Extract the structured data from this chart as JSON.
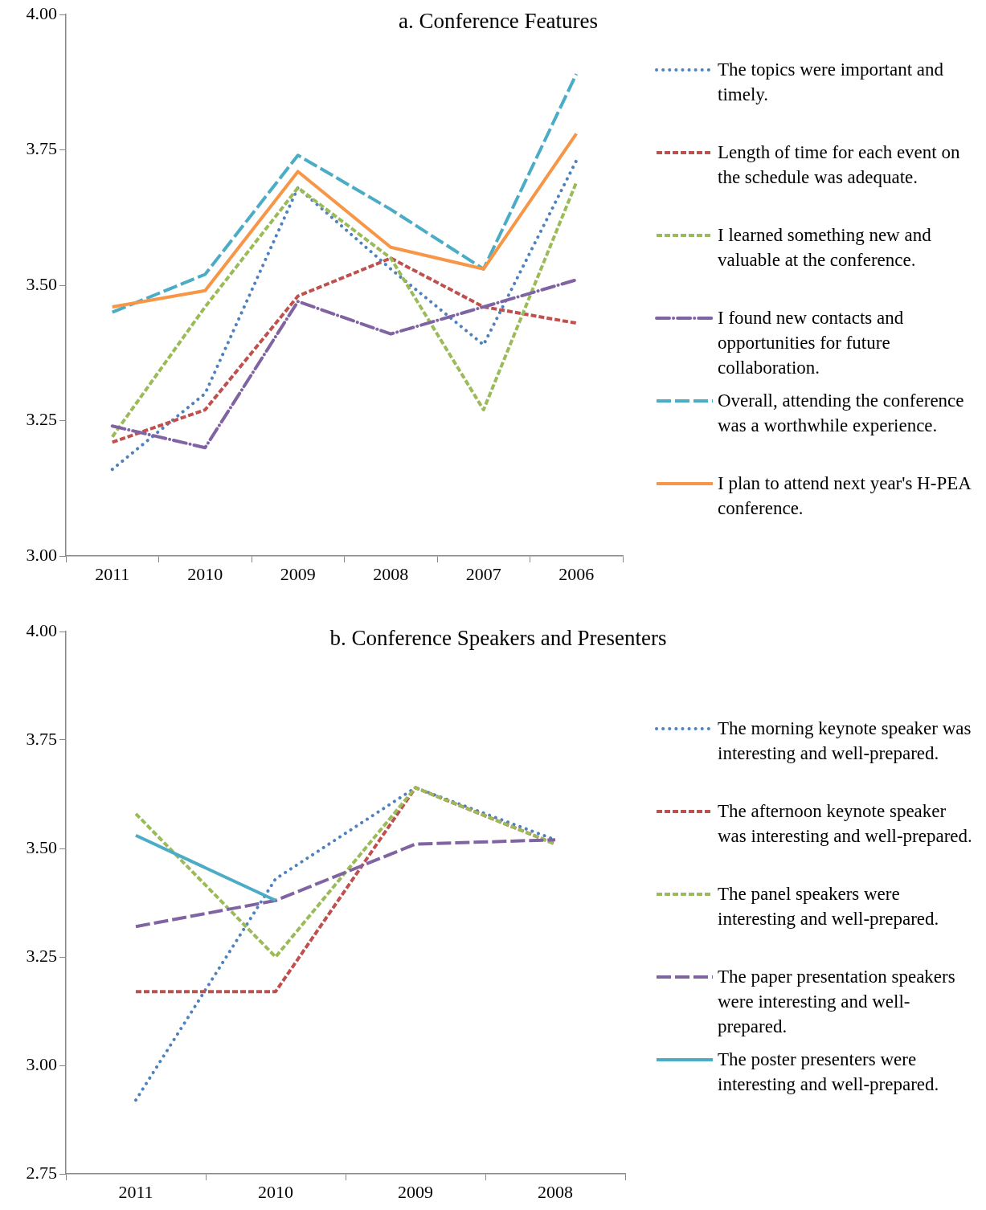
{
  "chart_data": [
    {
      "type": "line",
      "title": "a. Conference Features",
      "categories": [
        "2011",
        "2010",
        "2009",
        "2008",
        "2007",
        "2006"
      ],
      "ylim": [
        3.0,
        4.0
      ],
      "yticks": [
        {
          "value": 3,
          "label": "3.00"
        },
        3.25,
        {
          "value": 3.5,
          "label": "3.50"
        },
        3.75,
        {
          "value": 4,
          "label": "4.00"
        }
      ],
      "legend": "right",
      "marker": "none",
      "series": [
        {
          "name": "The topics were important and timely.",
          "color": "#4f81bd",
          "line_style": "dotted",
          "values": [
            3.16,
            3.3,
            3.68,
            3.53,
            3.39,
            3.73
          ]
        },
        {
          "name": "Length of time for each event on the schedule was adequate.",
          "color": "#c0504d",
          "line_style": "dashed",
          "values": [
            3.21,
            3.27,
            3.48,
            3.55,
            3.46,
            3.43
          ]
        },
        {
          "name": "I learned something new and valuable at the conference.",
          "color": "#9bbb59",
          "line_style": "dashed",
          "values": [
            3.22,
            3.46,
            3.68,
            3.55,
            3.27,
            3.69
          ]
        },
        {
          "name": "I found new contacts and opportunities for future collaboration.",
          "color": "#8064a2",
          "line_style": "dashdot",
          "values": [
            3.24,
            3.2,
            3.47,
            3.41,
            3.46,
            3.51
          ]
        },
        {
          "name": "Overall, attending the conference was a worthwhile experience.",
          "color": "#4bacc6",
          "line_style": "longdash",
          "values": [
            3.45,
            3.52,
            3.74,
            3.64,
            3.53,
            3.89
          ]
        },
        {
          "name": "I plan to attend next year's H-PEA conference.",
          "color": "#f79646",
          "line_style": "solid",
          "values": [
            3.46,
            3.49,
            3.71,
            3.57,
            3.53,
            3.78
          ]
        }
      ]
    },
    {
      "type": "line",
      "title": "b. Conference Speakers and Presenters",
      "categories": [
        "2011",
        "2010",
        "2009",
        "2008"
      ],
      "ylim": [
        2.75,
        4.0
      ],
      "yticks": [
        2.75,
        {
          "value": 3,
          "label": "3.00"
        },
        3.25,
        {
          "value": 3.5,
          "label": "3.50"
        },
        3.75,
        {
          "value": 4,
          "label": "4.00"
        }
      ],
      "legend": "right",
      "marker": "none",
      "series": [
        {
          "name": "The morning keynote speaker was interesting and well-prepared.",
          "color": "#4f81bd",
          "line_style": "dotted",
          "values": [
            2.92,
            3.43,
            3.64,
            3.52
          ]
        },
        {
          "name": "The afternoon keynote speaker was interesting and well-prepared.",
          "color": "#c0504d",
          "line_style": "dashed",
          "values": [
            3.17,
            3.17,
            3.64,
            3.51
          ]
        },
        {
          "name": "The panel speakers were interesting and well-prepared.",
          "color": "#9bbb59",
          "line_style": "dashed",
          "values": [
            3.58,
            3.25,
            3.64,
            3.51
          ]
        },
        {
          "name": "The paper presentation speakers were interesting and well-prepared.",
          "color": "#8064a2",
          "line_style": "longdash",
          "values": [
            3.32,
            3.38,
            3.51,
            3.52
          ]
        },
        {
          "name": "The poster presenters were interesting and well-prepared.",
          "color": "#4bacc6",
          "line_style": "solid",
          "values": [
            3.53,
            3.38,
            null,
            null
          ]
        }
      ]
    }
  ]
}
